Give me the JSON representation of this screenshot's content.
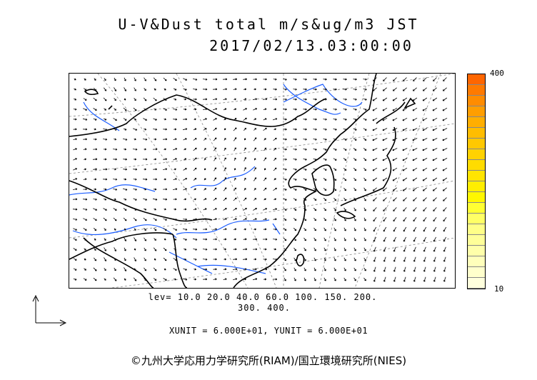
{
  "title": {
    "line1": "U-V&Dust total m/s&ug/m3 JST",
    "line2": "2017/02/13.03:00:00"
  },
  "colorbar": {
    "max_label": "400",
    "min_label": "10",
    "colors": [
      "#ff6600",
      "#ff7a00",
      "#ff8c00",
      "#ff9e00",
      "#ffae00",
      "#ffbd00",
      "#ffc800",
      "#ffd200",
      "#ffdc00",
      "#ffe500",
      "#ffee00",
      "#fff700",
      "#ffff33",
      "#ffff66",
      "#ffff88",
      "#ffff99",
      "#ffffaa",
      "#ffffbb",
      "#ffffcc",
      "#ffffdd"
    ]
  },
  "levels": {
    "line1": "lev= 10.0 20.0 40.0 60.0 100. 150. 200.",
    "line2": "300. 400."
  },
  "units": "XUNIT = 6.000E+01, YUNIT = 6.000E+01",
  "credit": "©九州大学応用力学研究所(RIAM)/国立環境研究所(NIES)",
  "map": {
    "coast_color": "#000000",
    "river_color": "#1a5cff",
    "grid_color": "#888888",
    "arrow_color": "#000000"
  }
}
